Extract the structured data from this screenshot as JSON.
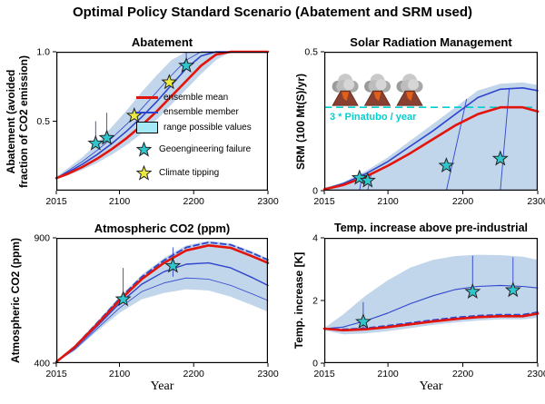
{
  "figure_title": "Optimal Policy Standard Scenario (Abatement and SRM used)",
  "xlabel": "Year",
  "palette": {
    "red": "#e3140b",
    "blue": "#2f45cc",
    "band": "#9fbfe0",
    "legend_patch": "#a5e9f7",
    "star_cyan": "#2fc7cd",
    "star_yellow": "#ece93f",
    "pinatubo": "#00cfcf"
  },
  "legend": {
    "items": [
      {
        "label": "ensemble mean",
        "swatch": "line-red"
      },
      {
        "label": "ensemble member",
        "swatch": "line-blue"
      },
      {
        "label": "range possible values",
        "swatch": "patch"
      },
      {
        "label": "Geoengineering failure",
        "swatch": "star-cyan"
      },
      {
        "label": "Climate tipping",
        "swatch": "star-yellow"
      }
    ]
  },
  "chart_data": [
    {
      "id": "abatement",
      "type": "line",
      "title": "Abatement",
      "ylabel": [
        "Abatement  (avoided",
        "fraction of CO2 emission)"
      ],
      "xlim": [
        2015,
        2300
      ],
      "ylim": [
        0,
        1.0
      ],
      "xticks": [
        2015,
        2100,
        2200,
        2300
      ],
      "yticks": [
        {
          "v": 0.5,
          "label": "0.5"
        },
        {
          "v": 1.0,
          "label": "1.0"
        }
      ],
      "x": [
        2015,
        2030,
        2050,
        2070,
        2090,
        2110,
        2130,
        2150,
        2170,
        2190,
        2210,
        2230,
        2250,
        2300
      ],
      "band": {
        "upper": [
          0.1,
          0.16,
          0.24,
          0.34,
          0.46,
          0.58,
          0.71,
          0.83,
          0.94,
          1.0,
          1.0,
          1.0,
          1.0,
          1.0
        ],
        "lower": [
          0.08,
          0.11,
          0.15,
          0.2,
          0.26,
          0.33,
          0.41,
          0.51,
          0.62,
          0.73,
          0.84,
          0.94,
          1.0,
          1.0
        ]
      },
      "series": [
        {
          "name": "ensemble member 2",
          "color": "blue",
          "width": 0.8,
          "values": [
            0.09,
            0.14,
            0.21,
            0.29,
            0.38,
            0.48,
            0.59,
            0.71,
            0.83,
            0.94,
            1.0,
            1.0,
            1.0,
            1.0
          ]
        },
        {
          "name": "ensemble member",
          "color": "blue",
          "width": 1.6,
          "values": [
            0.09,
            0.13,
            0.19,
            0.26,
            0.34,
            0.43,
            0.53,
            0.64,
            0.76,
            0.88,
            0.97,
            1.0,
            1.0,
            1.0
          ]
        },
        {
          "name": "ensemble mean",
          "color": "red",
          "width": 2.6,
          "values": [
            0.09,
            0.12,
            0.17,
            0.23,
            0.3,
            0.38,
            0.47,
            0.57,
            0.68,
            0.79,
            0.9,
            0.98,
            1.0,
            1.0
          ]
        }
      ],
      "segments": [
        [
          2068,
          0.5,
          2068,
          0.34
        ],
        [
          2083,
          0.56,
          2083,
          0.38
        ],
        [
          2190,
          1.0,
          2190,
          0.9
        ]
      ],
      "stars": [
        {
          "type": "geoengineering-failure",
          "color": "star_cyan",
          "points": [
            [
              2068,
              0.34
            ],
            [
              2083,
              0.38
            ],
            [
              2190,
              0.9
            ]
          ]
        },
        {
          "type": "climate-tipping",
          "color": "star_yellow",
          "points": [
            [
              2120,
              0.54
            ],
            [
              2167,
              0.78
            ]
          ]
        }
      ]
    },
    {
      "id": "srm",
      "type": "line",
      "title": "Solar Radiation Management",
      "ylabel": [
        "SRM (100 Mt(S)/yr)"
      ],
      "xlim": [
        2015,
        2300
      ],
      "ylim": [
        0,
        0.5
      ],
      "xticks": [
        2015,
        2100,
        2200,
        2300
      ],
      "yticks": [
        {
          "v": 0,
          "label": "0"
        },
        {
          "v": 0.5,
          "label": "0.5"
        }
      ],
      "hline": {
        "v": 0.3,
        "label": "3 * Pinatubo / year",
        "color": "pinatubo"
      },
      "volcanoes": [
        {
          "x": 2043
        },
        {
          "x": 2086
        },
        {
          "x": 2129
        }
      ],
      "x": [
        2015,
        2040,
        2070,
        2100,
        2130,
        2160,
        2190,
        2220,
        2250,
        2280,
        2300
      ],
      "band": {
        "upper": [
          0.01,
          0.03,
          0.07,
          0.12,
          0.18,
          0.24,
          0.3,
          0.36,
          0.385,
          0.39,
          0.38
        ],
        "lower": [
          0,
          0,
          0,
          0,
          0,
          0,
          0,
          0,
          0,
          0,
          0
        ]
      },
      "series": [
        {
          "name": "ensemble member",
          "color": "blue",
          "width": 1.6,
          "values": [
            0.005,
            0.025,
            0.06,
            0.105,
            0.16,
            0.215,
            0.275,
            0.335,
            0.365,
            0.37,
            0.36
          ]
        },
        {
          "name": "ensemble mean",
          "color": "red",
          "width": 2.6,
          "values": [
            0.005,
            0.02,
            0.05,
            0.09,
            0.135,
            0.185,
            0.235,
            0.275,
            0.3,
            0.3,
            0.285
          ]
        }
      ],
      "segments": [
        [
          2066,
          0.06,
          2062,
          0.0
        ],
        [
          2078,
          0.065,
          2073,
          0.0
        ],
        [
          2205,
          0.33,
          2178,
          0.0
        ],
        [
          2262,
          0.37,
          2250,
          0.0
        ]
      ],
      "stars": [
        {
          "type": "geoengineering-failure",
          "color": "star_cyan",
          "points": [
            [
              2062,
              0.046
            ],
            [
              2073,
              0.036
            ],
            [
              2178,
              0.09
            ],
            [
              2250,
              0.115
            ]
          ]
        }
      ]
    },
    {
      "id": "co2",
      "type": "line",
      "title": "Atmospheric CO2 (ppm)",
      "ylabel": [
        "Atmospheric CO2 (ppm)"
      ],
      "xlim": [
        2015,
        2300
      ],
      "ylim": [
        400,
        900
      ],
      "xticks": [
        2015,
        2100,
        2200,
        2300
      ],
      "yticks": [
        {
          "v": 400,
          "label": "400"
        },
        {
          "v": 900,
          "label": "900"
        }
      ],
      "x": [
        2015,
        2040,
        2070,
        2100,
        2130,
        2160,
        2190,
        2220,
        2250,
        2280,
        2300
      ],
      "band": {
        "upper": [
          408,
          472,
          567,
          665,
          752,
          820,
          870,
          888,
          878,
          845,
          818
        ],
        "lower": [
          402,
          450,
          528,
          600,
          655,
          680,
          695,
          690,
          665,
          630,
          605
        ]
      },
      "series": [
        {
          "name": "ensemble member 2",
          "color": "blue",
          "width": 0.8,
          "values": [
            405,
            455,
            538,
            620,
            685,
            720,
            740,
            735,
            710,
            675,
            650
          ]
        },
        {
          "name": "ensemble member",
          "color": "blue",
          "width": 1.4,
          "values": [
            405,
            460,
            548,
            638,
            715,
            765,
            795,
            800,
            780,
            740,
            710
          ]
        },
        {
          "name": "ensemble upper dashed",
          "color": "blue",
          "width": 1.8,
          "dash": "6 4",
          "values": [
            405,
            467,
            560,
            657,
            744,
            810,
            862,
            882,
            872,
            838,
            812
          ]
        },
        {
          "name": "ensemble mean",
          "color": "red",
          "width": 2.6,
          "values": [
            405,
            465,
            555,
            650,
            735,
            800,
            850,
            870,
            860,
            825,
            800
          ]
        }
      ],
      "segments": [
        [
          2105,
          780,
          2105,
          640
        ],
        [
          2172,
          862,
          2172,
          745
        ]
      ],
      "stars": [
        {
          "type": "geoengineering-failure",
          "color": "star_cyan",
          "points": [
            [
              2105,
              655
            ],
            [
              2172,
              788
            ]
          ]
        }
      ]
    },
    {
      "id": "temp",
      "type": "line",
      "title": "Temp. increase above pre-industrial",
      "ylabel": [
        "Temp. increase [K]"
      ],
      "xlim": [
        2015,
        2300
      ],
      "ylim": [
        0,
        4
      ],
      "xticks": [
        2015,
        2100,
        2200,
        2300
      ],
      "yticks": [
        {
          "v": 0,
          "label": "0"
        },
        {
          "v": 2,
          "label": "2"
        },
        {
          "v": 4,
          "label": "4"
        }
      ],
      "x": [
        2015,
        2040,
        2070,
        2100,
        2130,
        2160,
        2190,
        2220,
        2250,
        2280,
        2300
      ],
      "band": {
        "upper": [
          1.12,
          1.55,
          2.15,
          2.65,
          3.05,
          3.3,
          3.42,
          3.46,
          3.45,
          3.4,
          3.3
        ],
        "lower": [
          1.05,
          0.92,
          0.95,
          1.02,
          1.12,
          1.22,
          1.3,
          1.36,
          1.4,
          1.4,
          1.45
        ]
      },
      "series": [
        {
          "name": "ensemble member",
          "color": "blue",
          "width": 1.1,
          "values": [
            1.1,
            1.15,
            1.35,
            1.6,
            1.9,
            2.15,
            2.35,
            2.45,
            2.48,
            2.45,
            2.4
          ]
        },
        {
          "name": "ensemble upper dashed",
          "color": "blue",
          "width": 1.6,
          "dash": "6 4",
          "values": [
            1.1,
            1.08,
            1.12,
            1.2,
            1.29,
            1.38,
            1.46,
            1.52,
            1.55,
            1.55,
            1.63
          ]
        },
        {
          "name": "ensemble mean",
          "color": "red",
          "width": 2.6,
          "values": [
            1.1,
            1.05,
            1.08,
            1.15,
            1.24,
            1.33,
            1.41,
            1.47,
            1.5,
            1.5,
            1.58
          ]
        }
      ],
      "segments": [
        [
          2067,
          1.95,
          2067,
          1.1
        ],
        [
          2213,
          3.43,
          2213,
          2.3
        ],
        [
          2267,
          3.38,
          2267,
          2.35
        ]
      ],
      "stars": [
        {
          "type": "geoengineering-failure",
          "color": "star_cyan",
          "points": [
            [
              2067,
              1.32
            ],
            [
              2213,
              2.28
            ],
            [
              2267,
              2.33
            ]
          ]
        }
      ]
    }
  ]
}
